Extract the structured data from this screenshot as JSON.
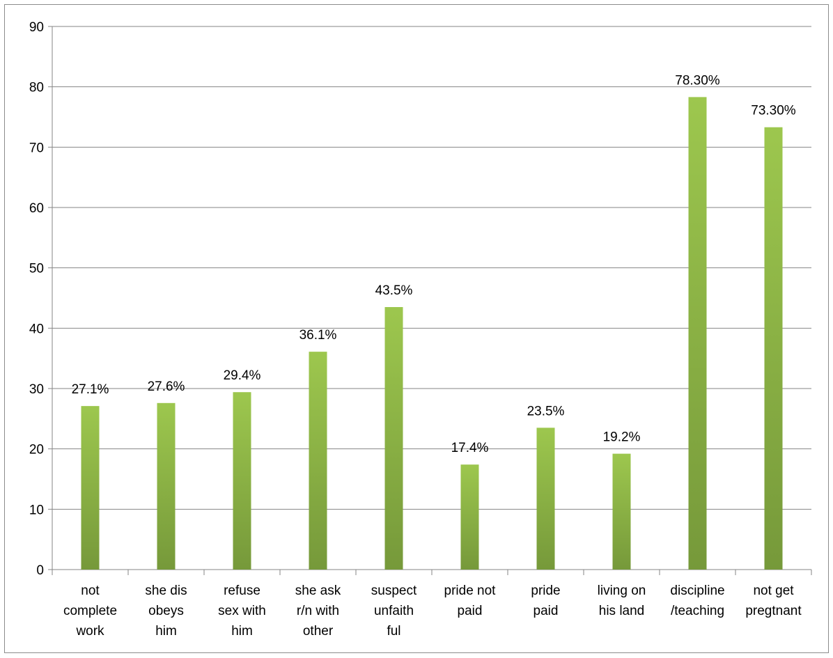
{
  "chart_data": {
    "type": "bar",
    "title": "",
    "xlabel": "",
    "ylabel": "",
    "ylim": [
      0,
      90
    ],
    "yticks": [
      0,
      10,
      20,
      30,
      40,
      50,
      60,
      70,
      80,
      90
    ],
    "grid": true,
    "legend": "none",
    "bar_color": "#8ab646",
    "bar_color_top": "#9dc74e",
    "bar_color_bottom": "#76993a",
    "categories": [
      [
        "not",
        "complete",
        "work"
      ],
      [
        "she dis",
        "obeys",
        "him"
      ],
      [
        "refuse",
        "sex with",
        "him"
      ],
      [
        "she ask",
        "r/n with",
        "other"
      ],
      [
        "suspect",
        "unfaith",
        "ful"
      ],
      [
        "pride not",
        "paid"
      ],
      [
        "pride",
        "paid"
      ],
      [
        "living on",
        "his land"
      ],
      [
        "discipline",
        "/teaching"
      ],
      [
        "not get",
        "pregtnant"
      ]
    ],
    "values": [
      27.1,
      27.6,
      29.4,
      36.1,
      43.5,
      17.4,
      23.5,
      19.2,
      78.3,
      73.3
    ],
    "data_labels": [
      "27.1%",
      "27.6%",
      "29.4%",
      "36.1%",
      "43.5%",
      "17.4%",
      "23.5%",
      "19.2%",
      "78.30%",
      "73.30%"
    ]
  }
}
